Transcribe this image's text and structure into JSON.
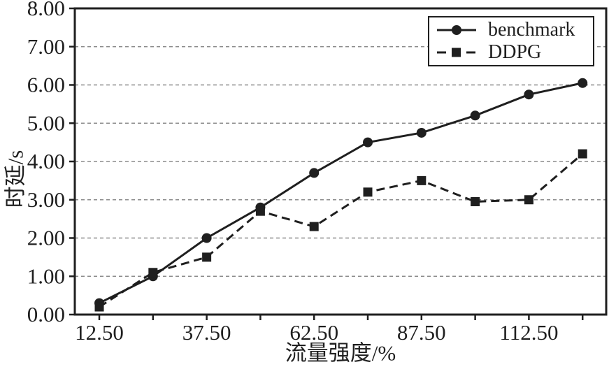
{
  "chart_data": {
    "type": "line",
    "title": "",
    "xlabel": "流量强度/%",
    "ylabel": "时延/s",
    "x": [
      12.5,
      25,
      37.5,
      50,
      62.5,
      75,
      87.5,
      100,
      112.5,
      125
    ],
    "series": [
      {
        "name": "benchmark",
        "line_style": "solid",
        "marker": "circle",
        "values": [
          0.3,
          1.0,
          2.0,
          2.8,
          3.7,
          4.5,
          4.75,
          5.2,
          5.75,
          6.05
        ]
      },
      {
        "name": "DDPG",
        "line_style": "dashed",
        "marker": "square",
        "values": [
          0.2,
          1.1,
          1.5,
          2.7,
          2.3,
          3.2,
          3.5,
          2.95,
          3.0,
          4.2
        ]
      }
    ],
    "xlim": [
      6.8,
      130.5
    ],
    "ylim": [
      0,
      8
    ],
    "xticks": [
      12.5,
      25,
      37.5,
      50,
      62.5,
      75,
      87.5,
      100,
      112.5,
      125
    ],
    "xtick_labels": [
      "12.50",
      "",
      "37.50",
      "",
      "62.50",
      "",
      "87.50",
      "",
      "112.50",
      ""
    ],
    "yticks": [
      0,
      1,
      2,
      3,
      4,
      5,
      6,
      7,
      8
    ],
    "ytick_labels": [
      "0.00",
      "1.00",
      "2.00",
      "3.00",
      "4.00",
      "5.00",
      "6.00",
      "7.00",
      "8.00"
    ],
    "grid": "horizontal-dashed",
    "legend_position": "top-right",
    "colors": {
      "line": "#1f1f1f",
      "grid": "#8c8c8c",
      "background": "#ffffff",
      "text": "#1f1f1f"
    }
  }
}
